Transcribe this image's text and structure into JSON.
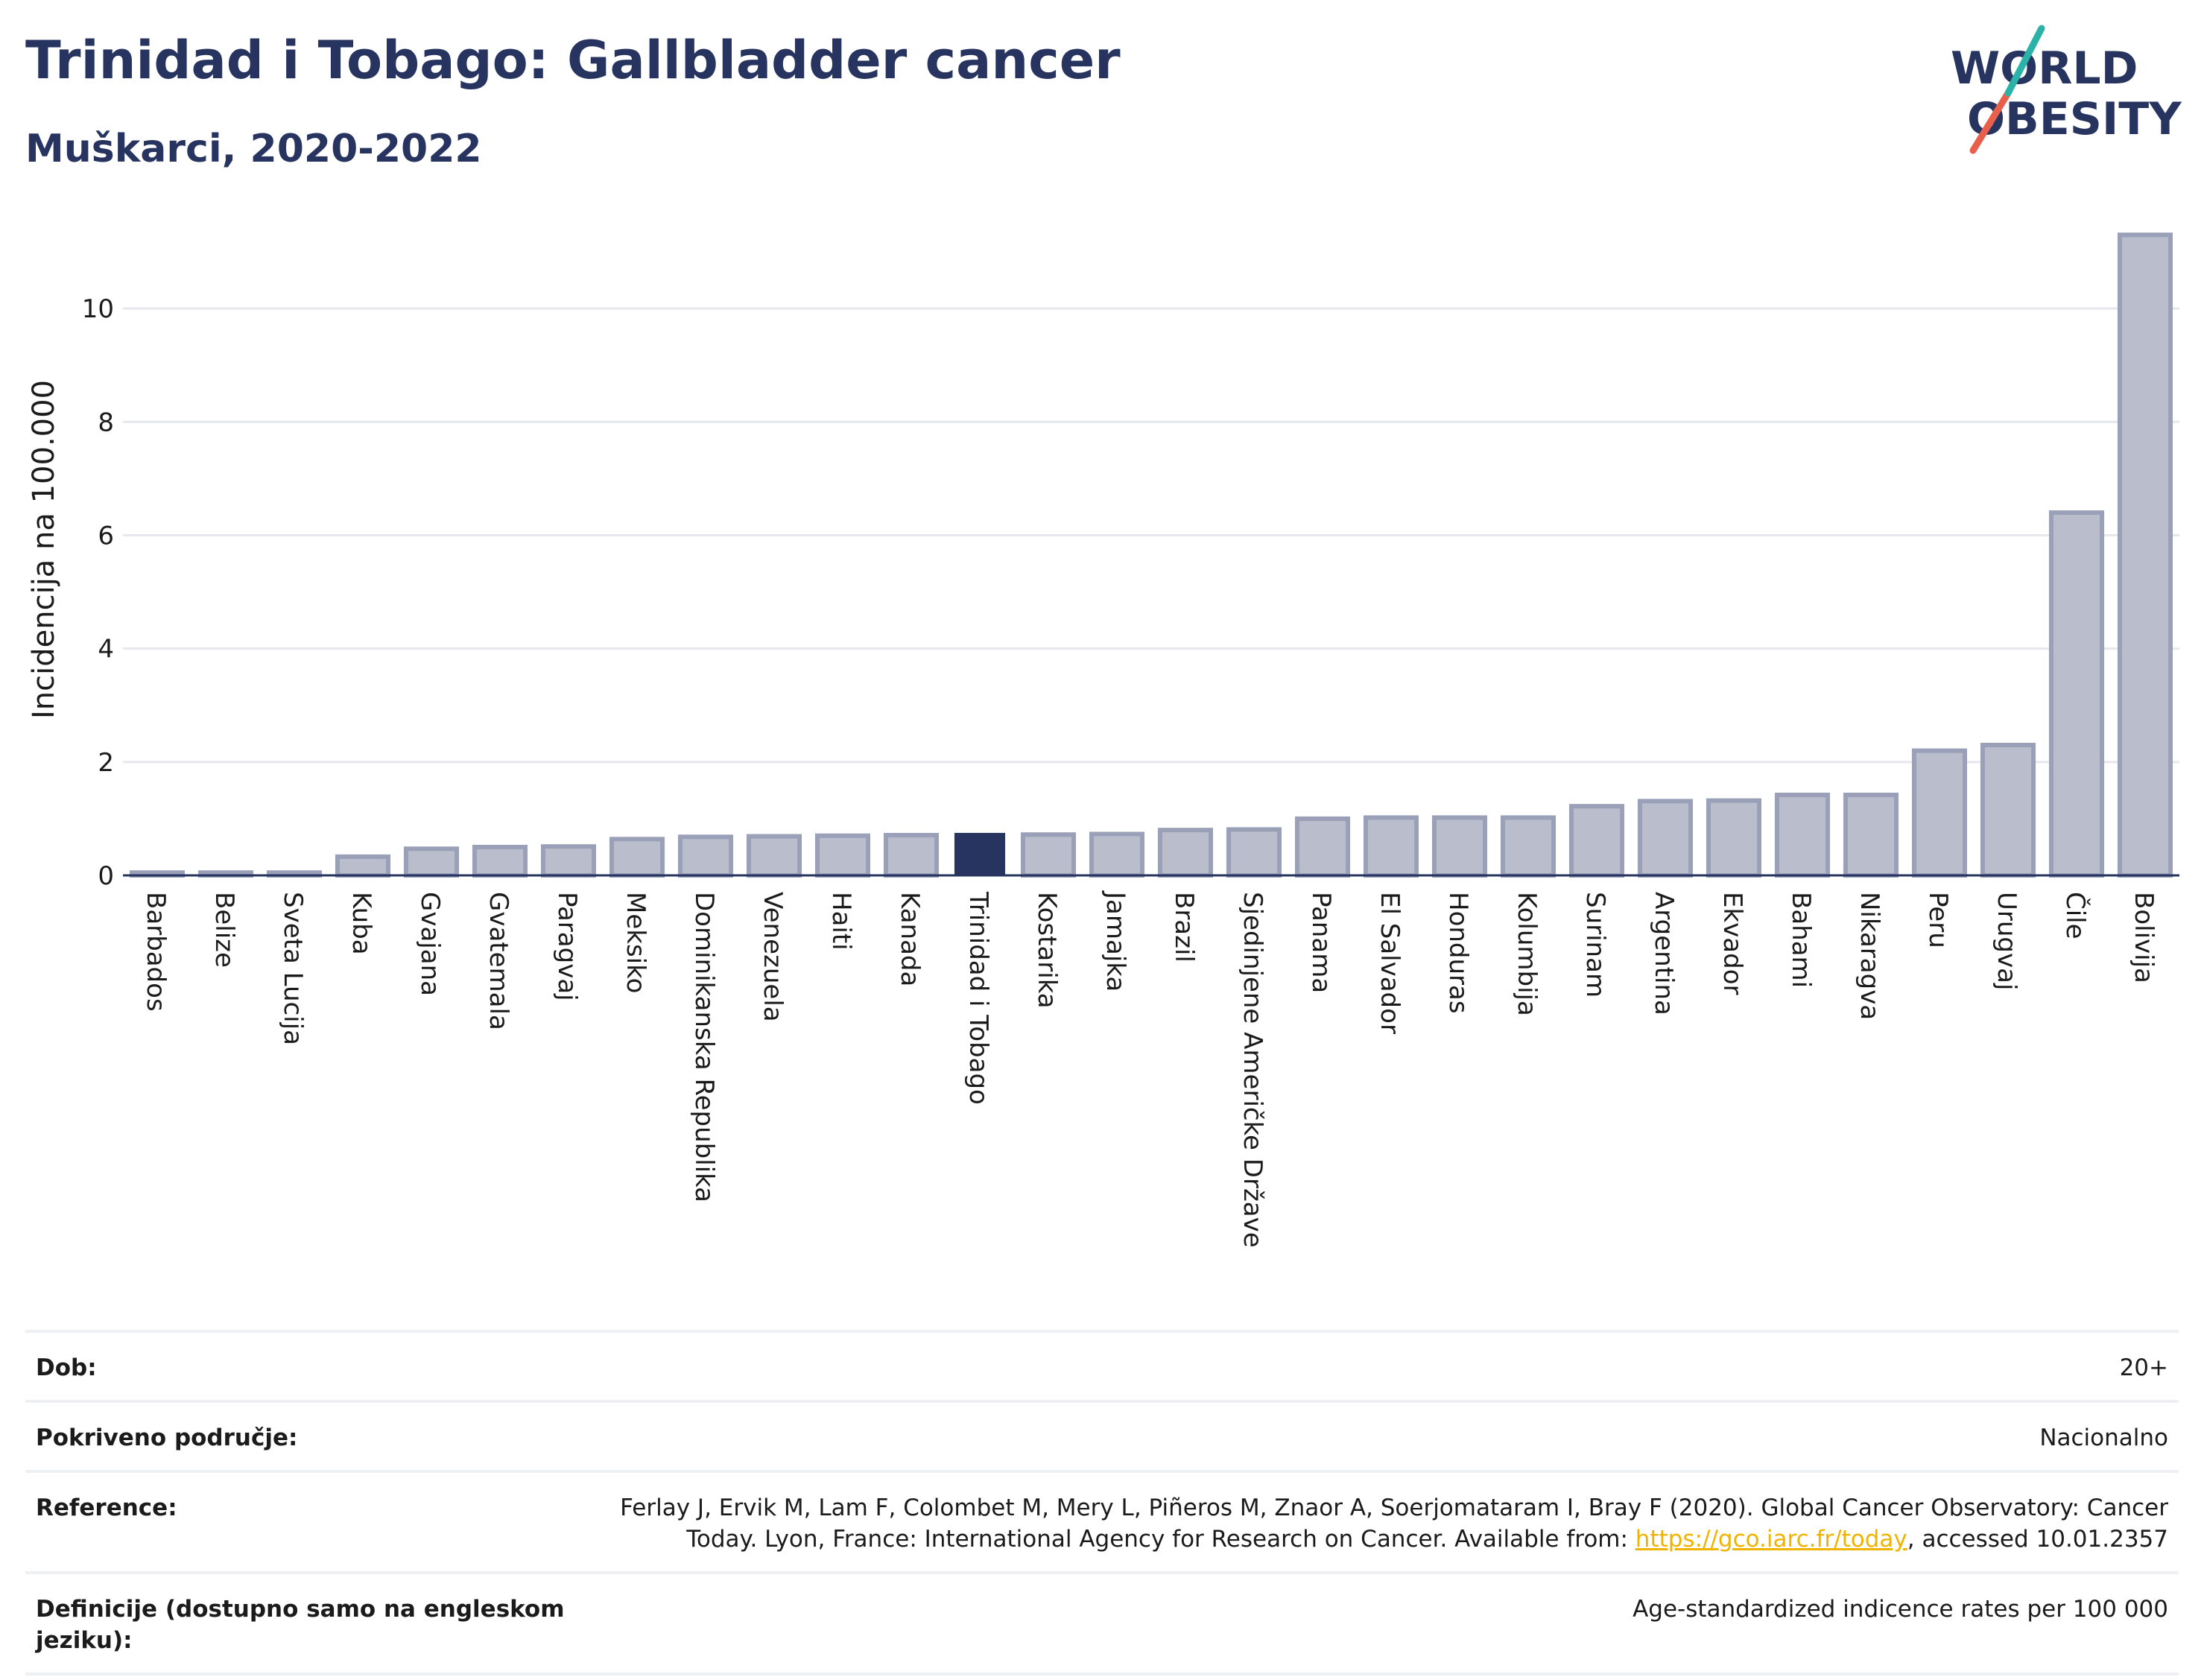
{
  "header": {
    "title": "Trinidad i Tobago: Gallbladder cancer",
    "subtitle": "Muškarci, 2020-2022"
  },
  "logo": {
    "line1": "WORLD",
    "line2": "OBESITY"
  },
  "colors": {
    "bar": "#b9bdcc",
    "bar_stroke": "#9aa0b8",
    "highlight": "#283460",
    "text": "#283460",
    "grid": "#e6e8ee"
  },
  "chart_data": {
    "type": "bar",
    "ylabel": "Incidencija na 100.000",
    "ylim": [
      0,
      11.5
    ],
    "yticks": [
      0,
      2,
      4,
      6,
      8,
      10
    ],
    "highlight": "Trinidad i Tobago",
    "categories": [
      "Barbados",
      "Belize",
      "Sveta Lucija",
      "Kuba",
      "Gvajana",
      "Gvatemala",
      "Paragvaj",
      "Meksiko",
      "Dominikanska Republika",
      "Venezuela",
      "Haiti",
      "Kanada",
      "Trinidad i Tobago",
      "Kostarika",
      "Jamajka",
      "Brazil",
      "Sjedinjene Američke Države",
      "Panama",
      "El Salvador",
      "Honduras",
      "Kolumbija",
      "Surinam",
      "Argentina",
      "Ekvador",
      "Bahami",
      "Nikaragva",
      "Peru",
      "Urugvaj",
      "Čile",
      "Bolivija"
    ],
    "values": [
      0.05,
      0.05,
      0.05,
      0.33,
      0.47,
      0.5,
      0.51,
      0.64,
      0.68,
      0.69,
      0.7,
      0.71,
      0.75,
      0.72,
      0.73,
      0.8,
      0.81,
      1.0,
      1.02,
      1.02,
      1.02,
      1.22,
      1.31,
      1.32,
      1.42,
      1.42,
      2.2,
      2.3,
      6.4,
      11.3
    ]
  },
  "footer": {
    "age_label": "Dob:",
    "age_value": "20+",
    "coverage_label": "Pokriveno područje:",
    "coverage_value": "Nacionalno",
    "reference_label": "Reference:",
    "reference_text_1": "Ferlay J, Ervik M, Lam F, Colombet M, Mery L, Piñeros M, Znaor A, Soerjomataram I, Bray F (2020). Global Cancer Observatory: Cancer Today. Lyon, France: International Agency for Research on Cancer. Available from: ",
    "reference_link": "https://gco.iarc.fr/today",
    "reference_text_2": ", accessed 10.01.2357",
    "definition_label": "Definicije (dostupno samo na engleskom jeziku):",
    "definition_value": "Age-standardized indicence rates per 100 000"
  }
}
